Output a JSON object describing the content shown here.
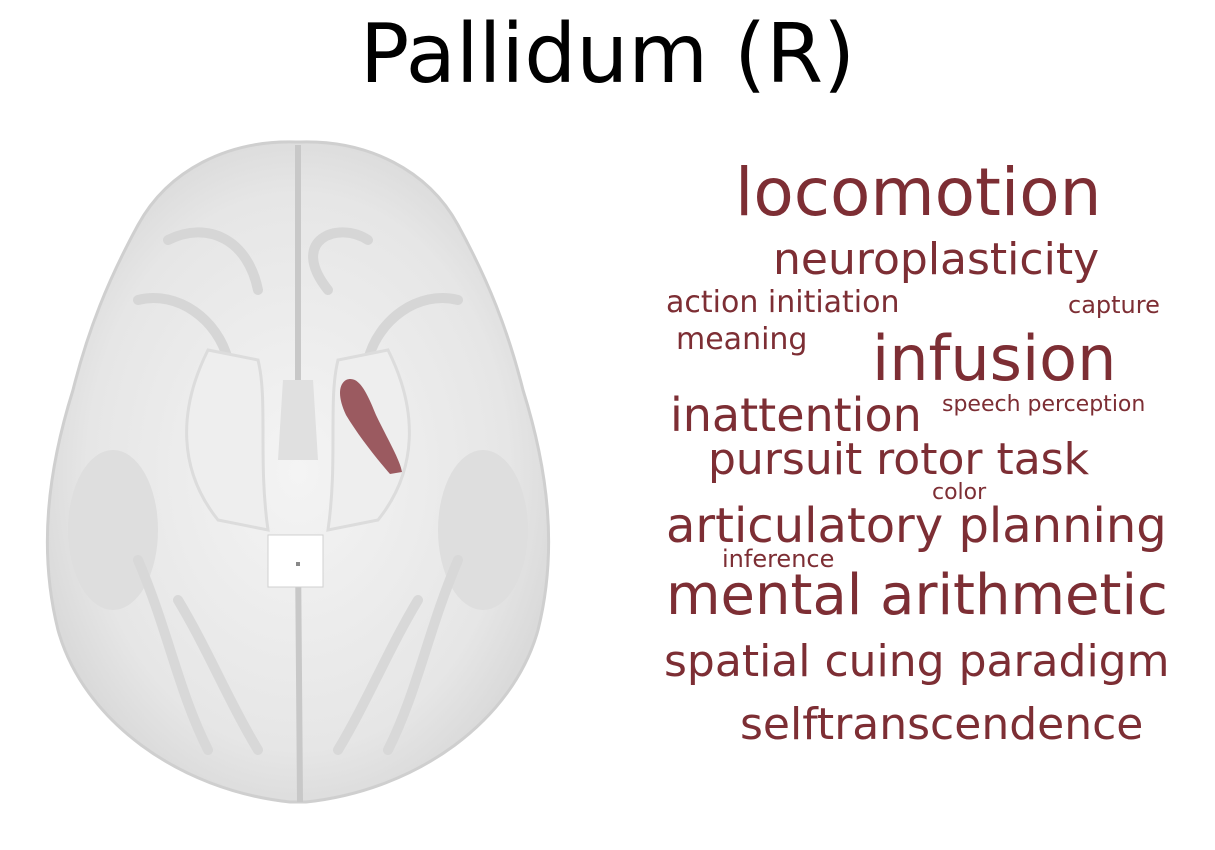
{
  "title": "Pallidum (R)",
  "colors": {
    "region": "#9b5a60",
    "word": "#7d2e34",
    "brain_base": "#ebebeb"
  },
  "brain": {
    "icon": "axial-brain-slice",
    "highlight": "pallidum-right",
    "view": "axial"
  },
  "word_cloud": [
    {
      "text": "locomotion"
    },
    {
      "text": "neuroplasticity"
    },
    {
      "text": "action initiation"
    },
    {
      "text": "capture"
    },
    {
      "text": "meaning"
    },
    {
      "text": "infusion"
    },
    {
      "text": "inattention"
    },
    {
      "text": "speech perception"
    },
    {
      "text": "pursuit rotor task"
    },
    {
      "text": "color"
    },
    {
      "text": "articulatory planning"
    },
    {
      "text": "inference"
    },
    {
      "text": "mental arithmetic"
    },
    {
      "text": "spatial cuing paradigm"
    },
    {
      "text": "selftranscendence"
    }
  ]
}
